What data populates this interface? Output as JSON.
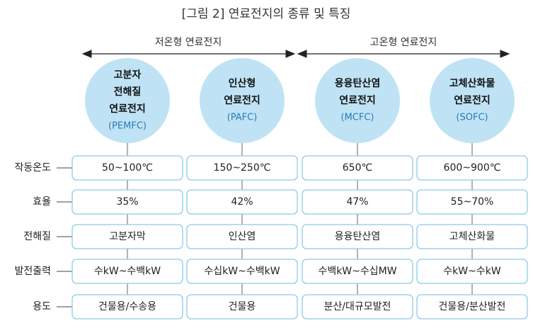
{
  "title": "[그림 2] 연료전지의 종류 및 특징",
  "groups": [
    {
      "label": "저온형 연료전지"
    },
    {
      "label": "고온형 연료전지"
    }
  ],
  "columns": [
    {
      "name_lines": [
        "고분자",
        "전해질",
        "연료전지"
      ],
      "abbr": "(PEMFC)"
    },
    {
      "name_lines": [
        "인산형",
        "연료전지"
      ],
      "abbr": "(PAFC)"
    },
    {
      "name_lines": [
        "용융탄산염",
        "연료전지"
      ],
      "abbr": "(MCFC)"
    },
    {
      "name_lines": [
        "고체산화물",
        "연료전지"
      ],
      "abbr": "(SOFC)"
    }
  ],
  "rows": [
    {
      "label": "작동온도",
      "cells": [
        "50~100℃",
        "150~250℃",
        "650℃",
        "600~900℃"
      ]
    },
    {
      "label": "효율",
      "cells": [
        "35%",
        "42%",
        "47%",
        "55~70%"
      ]
    },
    {
      "label": "전해질",
      "cells": [
        "고분자막",
        "인산염",
        "용융탄산염",
        "고체산화물"
      ]
    },
    {
      "label": "발전출력",
      "cells": [
        "수kW~수백kW",
        "수십kW~수백kW",
        "수백kW~수십MW",
        "수kW~수kW"
      ]
    },
    {
      "label": "용도",
      "cells": [
        "건물용/수송용",
        "건물용",
        "분산/대규모발전",
        "건물용/분산발전"
      ]
    }
  ]
}
